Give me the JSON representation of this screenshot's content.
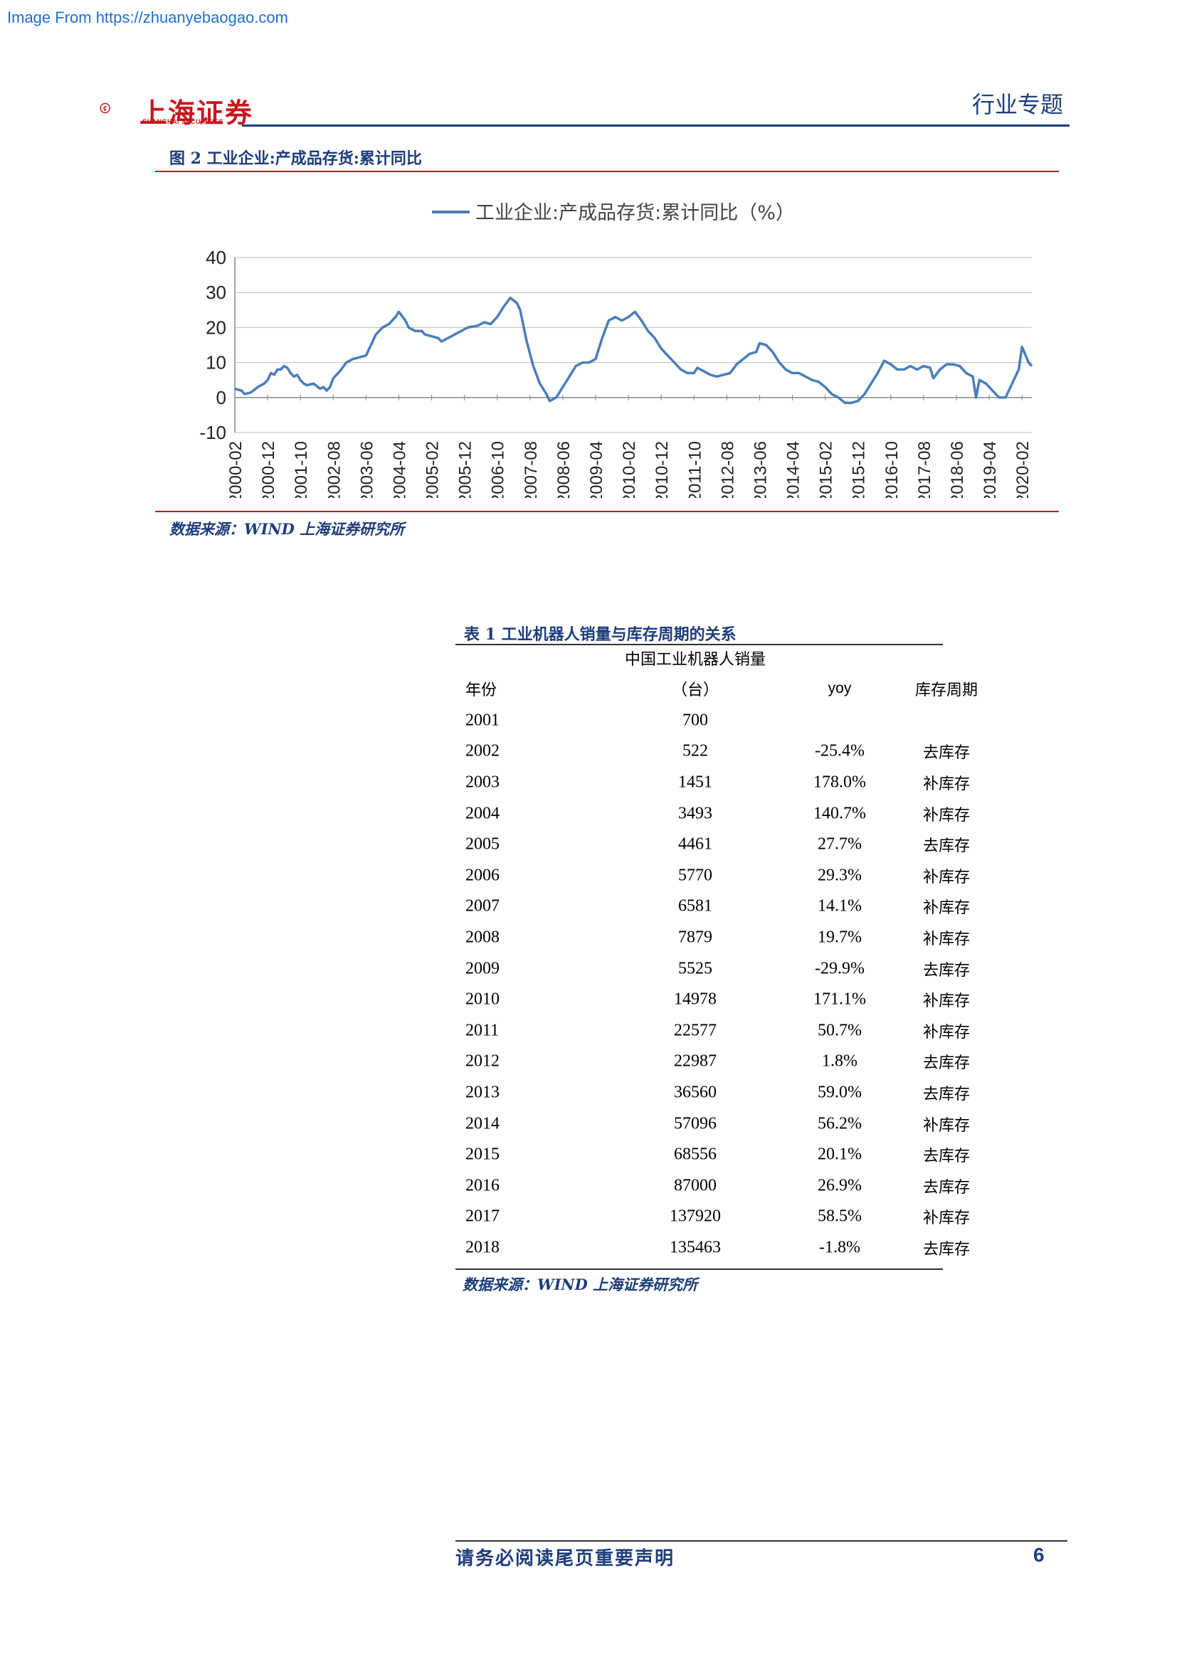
{
  "watermark": "Image From https://zhuanyebaogao.com",
  "header": {
    "logo_text": "上海证券",
    "logo_subtext": "SHANGHAI SECURITIES",
    "section_tag": "行业专题"
  },
  "figure": {
    "caption": "图 2 工业企业:产成品存货:累计同比",
    "source": "数据来源：WIND 上海证券研究所"
  },
  "chart_data": {
    "type": "line",
    "title": "",
    "legend": "工业企业:产成品存货:累计同比（%）",
    "legend_position": "top-center",
    "ylim": [
      -10,
      40
    ],
    "yticks": [
      -10,
      0,
      10,
      20,
      30,
      40
    ],
    "grid": true,
    "line_color": "#4a7ebb",
    "x_tick_labels": [
      "2000-02",
      "2000-12",
      "2001-10",
      "2002-08",
      "2003-06",
      "2004-04",
      "2005-02",
      "2005-12",
      "2006-10",
      "2007-08",
      "2008-06",
      "2009-04",
      "2010-02",
      "2010-12",
      "2011-10",
      "2012-08",
      "2013-06",
      "2014-04",
      "2015-02",
      "2015-12",
      "2016-10",
      "2017-08",
      "2018-06",
      "2019-04",
      "2020-02"
    ],
    "series": [
      {
        "values": [
          [
            0,
            2.5
          ],
          [
            2,
            2
          ],
          [
            3,
            1
          ],
          [
            5,
            1.5
          ],
          [
            7,
            3
          ],
          [
            9,
            4
          ],
          [
            10,
            5
          ],
          [
            11,
            7
          ],
          [
            12,
            6.5
          ],
          [
            13,
            8
          ],
          [
            14,
            8
          ],
          [
            15,
            9
          ],
          [
            16,
            8.5
          ],
          [
            17,
            7
          ],
          [
            18,
            6
          ],
          [
            19,
            6.5
          ],
          [
            20,
            5
          ],
          [
            21,
            4
          ],
          [
            22,
            3.5
          ],
          [
            24,
            4
          ],
          [
            26,
            2.5
          ],
          [
            27,
            3
          ],
          [
            28,
            2
          ],
          [
            29,
            3
          ],
          [
            30,
            5.5
          ],
          [
            32,
            7.5
          ],
          [
            34,
            10
          ],
          [
            36,
            11
          ],
          [
            38,
            11.5
          ],
          [
            40,
            12
          ],
          [
            41,
            14
          ],
          [
            43,
            18
          ],
          [
            45,
            20
          ],
          [
            47,
            21
          ],
          [
            49,
            23
          ],
          [
            50,
            24.5
          ],
          [
            52,
            22
          ],
          [
            53,
            20
          ],
          [
            55,
            19
          ],
          [
            57,
            19
          ],
          [
            58,
            18
          ],
          [
            60,
            17.5
          ],
          [
            62,
            17
          ],
          [
            63,
            16
          ],
          [
            65,
            17
          ],
          [
            67,
            18
          ],
          [
            69,
            19
          ],
          [
            71,
            20
          ],
          [
            74,
            20.5
          ],
          [
            76,
            21.5
          ],
          [
            78,
            21
          ],
          [
            80,
            23
          ],
          [
            82,
            26
          ],
          [
            84,
            28.5
          ],
          [
            86,
            27
          ],
          [
            87,
            25
          ],
          [
            89,
            16
          ],
          [
            91,
            9
          ],
          [
            93,
            4
          ],
          [
            95,
            1
          ],
          [
            96,
            -1
          ],
          [
            98,
            0
          ],
          [
            100,
            3
          ],
          [
            102,
            6
          ],
          [
            104,
            9
          ],
          [
            106,
            10
          ],
          [
            108,
            10
          ],
          [
            110,
            11
          ],
          [
            112,
            17
          ],
          [
            114,
            22
          ],
          [
            116,
            23
          ],
          [
            118,
            22
          ],
          [
            120,
            23
          ],
          [
            122,
            24.5
          ],
          [
            124,
            22
          ],
          [
            126,
            19
          ],
          [
            128,
            17
          ],
          [
            130,
            14
          ],
          [
            132,
            12
          ],
          [
            134,
            10
          ],
          [
            136,
            8
          ],
          [
            138,
            7
          ],
          [
            140,
            7
          ],
          [
            141,
            8.5
          ],
          [
            143,
            7.5
          ],
          [
            145,
            6.5
          ],
          [
            147,
            6
          ],
          [
            149,
            6.5
          ],
          [
            151,
            7
          ],
          [
            153,
            9.5
          ],
          [
            155,
            11
          ],
          [
            157,
            12.5
          ],
          [
            159,
            13
          ],
          [
            160,
            15.5
          ],
          [
            162,
            15
          ],
          [
            164,
            13
          ],
          [
            166,
            10
          ],
          [
            168,
            8
          ],
          [
            170,
            7
          ],
          [
            172,
            7
          ],
          [
            174,
            6
          ],
          [
            176,
            5
          ],
          [
            178,
            4.5
          ],
          [
            180,
            3
          ],
          [
            182,
            1
          ],
          [
            184,
            0
          ],
          [
            186,
            -1.5
          ],
          [
            188,
            -1.5
          ],
          [
            190,
            -1
          ],
          [
            192,
            1
          ],
          [
            194,
            4
          ],
          [
            196,
            7
          ],
          [
            198,
            10.5
          ],
          [
            200,
            9.5
          ],
          [
            202,
            8
          ],
          [
            204,
            8
          ],
          [
            206,
            9
          ],
          [
            208,
            8
          ],
          [
            210,
            9
          ],
          [
            212,
            8.5
          ],
          [
            213,
            5.5
          ],
          [
            215,
            8
          ],
          [
            217,
            9.5
          ],
          [
            219,
            9.5
          ],
          [
            221,
            9
          ],
          [
            223,
            7
          ],
          [
            225,
            6
          ],
          [
            226,
            0
          ],
          [
            227,
            5
          ],
          [
            229,
            4
          ],
          [
            231,
            2
          ],
          [
            233,
            0
          ],
          [
            235,
            0
          ],
          [
            237,
            4
          ],
          [
            239,
            8
          ],
          [
            240,
            14.5
          ],
          [
            242,
            10
          ],
          [
            243,
            9
          ]
        ]
      }
    ]
  },
  "table": {
    "caption": "表 1 工业机器人销量与库存周期的关系",
    "header_top": "中国工业机器人销量",
    "headers": [
      "年份",
      "（台）",
      "yoy",
      "库存周期"
    ],
    "rows": [
      [
        "2001",
        "700",
        "",
        ""
      ],
      [
        "2002",
        "522",
        "-25.4%",
        "去库存"
      ],
      [
        "2003",
        "1451",
        "178.0%",
        "补库存"
      ],
      [
        "2004",
        "3493",
        "140.7%",
        "补库存"
      ],
      [
        "2005",
        "4461",
        "27.7%",
        "去库存"
      ],
      [
        "2006",
        "5770",
        "29.3%",
        "补库存"
      ],
      [
        "2007",
        "6581",
        "14.1%",
        "补库存"
      ],
      [
        "2008",
        "7879",
        "19.7%",
        "补库存"
      ],
      [
        "2009",
        "5525",
        "-29.9%",
        "去库存"
      ],
      [
        "2010",
        "14978",
        "171.1%",
        "补库存"
      ],
      [
        "2011",
        "22577",
        "50.7%",
        "补库存"
      ],
      [
        "2012",
        "22987",
        "1.8%",
        "去库存"
      ],
      [
        "2013",
        "36560",
        "59.0%",
        "去库存"
      ],
      [
        "2014",
        "57096",
        "56.2%",
        "补库存"
      ],
      [
        "2015",
        "68556",
        "20.1%",
        "去库存"
      ],
      [
        "2016",
        "87000",
        "26.9%",
        "去库存"
      ],
      [
        "2017",
        "137920",
        "58.5%",
        "补库存"
      ],
      [
        "2018",
        "135463",
        "-1.8%",
        "去库存"
      ]
    ],
    "source": "数据来源：WIND 上海证券研究所"
  },
  "footer": {
    "disclaimer": "请务必阅读尾页重要声明",
    "page_number": "6"
  },
  "colors": {
    "brand_red": "#c8171d",
    "brand_navy": "#1d3d7a",
    "series_blue": "#4a7ebb"
  }
}
